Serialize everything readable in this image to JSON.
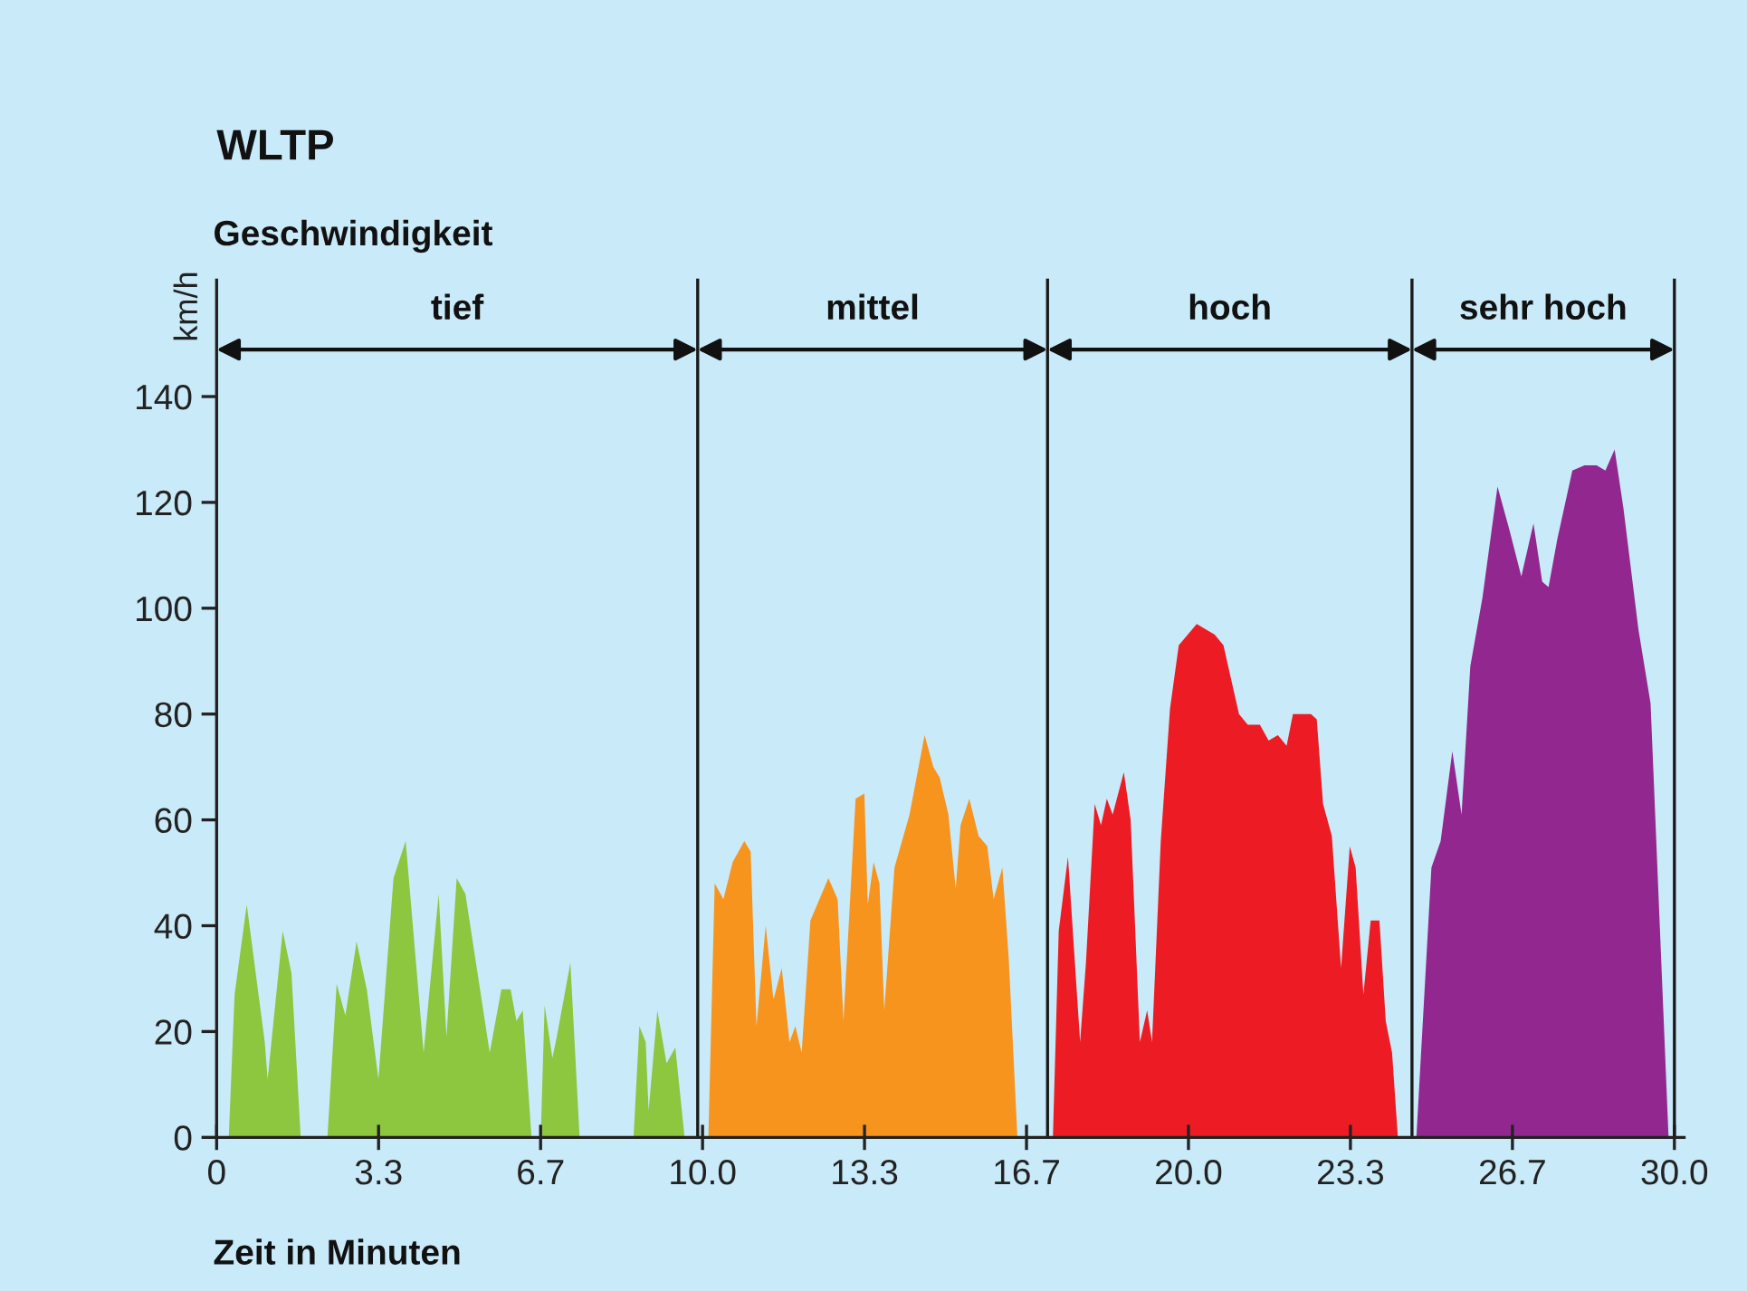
{
  "chart_data": {
    "type": "area",
    "title": "WLTP",
    "subtitle": "Geschwindigkeit",
    "xlabel": "Zeit in Minuten",
    "ylabel": "km/h",
    "xlim": [
      0,
      30.2
    ],
    "ylim": [
      0,
      162
    ],
    "xticks": [
      0,
      {
        "value": 3.333,
        "label": "3.3"
      },
      {
        "value": 6.667,
        "label": "6.7"
      },
      {
        "value": 10,
        "label": "10.0"
      },
      {
        "value": 13.333,
        "label": "13.3"
      },
      {
        "value": 16.667,
        "label": "16.7"
      },
      {
        "value": 20,
        "label": "20.0"
      },
      {
        "value": 23.333,
        "label": "23.3"
      },
      {
        "value": 26.667,
        "label": "26.7"
      },
      {
        "value": 30,
        "label": "30.0"
      }
    ],
    "yticks": [
      0,
      20,
      40,
      60,
      80,
      100,
      120,
      140
    ],
    "grid": false,
    "legend": false,
    "series": [
      {
        "color": "#8dc63f",
        "x": [
          0.25,
          0.37,
          0.62,
          0.99,
          1.05,
          1.36,
          1.54,
          1.73,
          2.28,
          2.47,
          2.65,
          2.88,
          3.09,
          3.33,
          3.64,
          3.89,
          4.26,
          4.57,
          4.73,
          4.94,
          5.12,
          5.62,
          5.86,
          6.05,
          6.17,
          6.3,
          6.48,
          6.67,
          6.75,
          6.91,
          7.0,
          7.28,
          7.47,
          8.58,
          8.7,
          8.83,
          8.89,
          9.07,
          9.26,
          9.44,
          9.63
        ],
        "values": [
          0,
          27,
          44,
          18,
          11,
          39,
          31,
          0,
          0,
          29,
          23,
          37,
          28,
          11,
          49,
          56,
          16,
          46,
          19,
          49,
          46,
          16,
          28,
          28,
          22,
          24,
          0,
          0,
          25,
          15,
          19,
          33,
          0,
          0,
          21,
          18,
          5,
          24,
          14,
          17,
          0
        ]
      },
      {
        "color": "#f7941d",
        "x": [
          10.12,
          10.25,
          10.43,
          10.62,
          10.86,
          10.99,
          11.11,
          11.3,
          11.46,
          11.63,
          11.79,
          11.91,
          12.04,
          12.22,
          12.59,
          12.78,
          12.9,
          13.15,
          13.33,
          13.4,
          13.52,
          13.64,
          13.74,
          13.95,
          14.26,
          14.57,
          14.75,
          14.88,
          15.06,
          15.21,
          15.31,
          15.49,
          15.68,
          15.86,
          15.99,
          16.17,
          16.3,
          16.48
        ],
        "values": [
          0,
          48,
          45,
          52,
          56,
          54,
          21,
          40,
          26,
          32,
          18,
          21,
          16,
          41,
          49,
          45,
          22,
          64,
          65,
          44,
          52,
          48,
          24,
          51,
          61,
          76,
          70,
          68,
          61,
          47,
          59,
          64,
          57,
          55,
          45,
          51,
          34,
          0
        ]
      },
      {
        "color": "#ed1c24",
        "x": [
          17.21,
          17.33,
          17.52,
          17.77,
          17.89,
          18.07,
          18.2,
          18.32,
          18.44,
          18.67,
          18.81,
          19.0,
          19.15,
          19.25,
          19.43,
          19.62,
          19.8,
          20.17,
          20.54,
          20.72,
          21.04,
          21.22,
          21.47,
          21.65,
          21.84,
          22.02,
          22.15,
          22.52,
          22.64,
          22.77,
          22.95,
          23.14,
          23.32,
          23.44,
          23.6,
          23.75,
          23.93,
          24.06,
          24.19,
          24.31
        ],
        "values": [
          0,
          39,
          53,
          18,
          33,
          63,
          59,
          64,
          61,
          69,
          60,
          18,
          24,
          18,
          56,
          81,
          93,
          97,
          95,
          93,
          80,
          78,
          78,
          75,
          76,
          74,
          80,
          80,
          79,
          63,
          57,
          32,
          55,
          51,
          27,
          41,
          41,
          22,
          16,
          0
        ]
      },
      {
        "color": "#92278f",
        "x": [
          24.69,
          25.0,
          25.19,
          25.43,
          25.62,
          25.8,
          26.05,
          26.36,
          26.6,
          26.85,
          27.1,
          27.28,
          27.41,
          27.59,
          27.9,
          28.15,
          28.4,
          28.58,
          28.77,
          28.95,
          29.26,
          29.51,
          29.88
        ],
        "values": [
          0,
          51,
          56,
          73,
          61,
          89,
          102,
          123,
          115,
          106,
          116,
          105,
          104,
          113,
          126,
          127,
          127,
          126,
          130,
          119,
          96,
          82,
          0
        ]
      }
    ],
    "ref_lines": [
      {
        "axis": "x",
        "value": 9.9,
        "color": "#1a1a1a"
      },
      {
        "axis": "x",
        "value": 17.1,
        "color": "#1a1a1a"
      },
      {
        "axis": "x",
        "value": 24.6,
        "color": "#1a1a1a"
      },
      {
        "axis": "x",
        "value": 30,
        "color": "#1a1a1a"
      }
    ],
    "annotations": [
      "tief",
      "mittel",
      "hoch",
      "sehr hoch"
    ]
  }
}
